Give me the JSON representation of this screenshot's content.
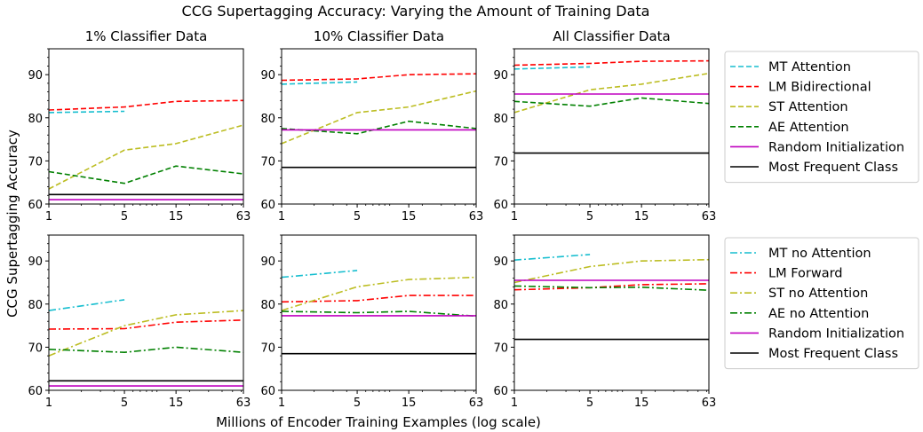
{
  "chart_data": {
    "type": "line",
    "title": "CCG Supertagging Accuracy: Varying the Amount of Training Data",
    "xlabel": "Millions of Encoder Training Examples (log scale)",
    "ylabel": "CCG Supertagging Accuracy",
    "xscale": "log",
    "xlim": [
      1,
      63
    ],
    "ylim": [
      60,
      96
    ],
    "xticks": [
      1,
      5,
      15,
      63
    ],
    "yticks": [
      60,
      70,
      80,
      90
    ],
    "colors": {
      "MT": "#17becf",
      "LM": "#ff0000",
      "ST": "#bcbd22",
      "AE": "#008000",
      "Random": "#bf00bf",
      "Frequent": "#000000"
    },
    "column_titles": [
      "1% Classifier Data",
      "10% Classifier Data",
      "All Classifier Data"
    ],
    "legends": [
      {
        "position": "right-top",
        "entries": [
          {
            "label": "MT Attention",
            "color_key": "MT",
            "style": "dashed"
          },
          {
            "label": "LM Bidirectional",
            "color_key": "LM",
            "style": "dashed"
          },
          {
            "label": "ST Attention",
            "color_key": "ST",
            "style": "dashed"
          },
          {
            "label": "AE Attention",
            "color_key": "AE",
            "style": "dashed"
          },
          {
            "label": "Random Initialization",
            "color_key": "Random",
            "style": "solid"
          },
          {
            "label": "Most Frequent Class",
            "color_key": "Frequent",
            "style": "solid"
          }
        ]
      },
      {
        "position": "right-bottom",
        "entries": [
          {
            "label": "MT no Attention",
            "color_key": "MT",
            "style": "dashdot"
          },
          {
            "label": "LM Forward",
            "color_key": "LM",
            "style": "dashdot"
          },
          {
            "label": "ST no Attention",
            "color_key": "ST",
            "style": "dashdot"
          },
          {
            "label": "AE no Attention",
            "color_key": "AE",
            "style": "dashdot"
          },
          {
            "label": "Random Initialization",
            "color_key": "Random",
            "style": "solid"
          },
          {
            "label": "Most Frequent Class",
            "color_key": "Frequent",
            "style": "solid"
          }
        ]
      }
    ],
    "panels": [
      {
        "row": 0,
        "col": 0,
        "series": [
          {
            "name": "MT Attention",
            "color_key": "MT",
            "style": "dashed",
            "x": [
              1,
              5
            ],
            "y": [
              81.2,
              81.5
            ]
          },
          {
            "name": "LM Bidirectional",
            "color_key": "LM",
            "style": "dashed",
            "x": [
              1,
              5,
              15,
              63
            ],
            "y": [
              81.8,
              82.5,
              83.8,
              84.0
            ]
          },
          {
            "name": "ST Attention",
            "color_key": "ST",
            "style": "dashed",
            "x": [
              1,
              5,
              15,
              63
            ],
            "y": [
              63.5,
              72.5,
              74.0,
              78.3
            ]
          },
          {
            "name": "AE Attention",
            "color_key": "AE",
            "style": "dashed",
            "x": [
              1,
              5,
              15,
              63
            ],
            "y": [
              67.5,
              64.8,
              68.8,
              67.0
            ]
          },
          {
            "name": "Random Initialization",
            "color_key": "Random",
            "style": "solid",
            "x": [
              1,
              63
            ],
            "y": [
              61.0,
              61.0
            ]
          },
          {
            "name": "Most Frequent Class",
            "color_key": "Frequent",
            "style": "solid",
            "x": [
              1,
              63
            ],
            "y": [
              62.2,
              62.2
            ]
          }
        ]
      },
      {
        "row": 0,
        "col": 1,
        "series": [
          {
            "name": "MT Attention",
            "color_key": "MT",
            "style": "dashed",
            "x": [
              1,
              5
            ],
            "y": [
              87.8,
              88.3
            ]
          },
          {
            "name": "LM Bidirectional",
            "color_key": "LM",
            "style": "dashed",
            "x": [
              1,
              5,
              15,
              63
            ],
            "y": [
              88.7,
              89.0,
              90.0,
              90.2
            ]
          },
          {
            "name": "ST Attention",
            "color_key": "ST",
            "style": "dashed",
            "x": [
              1,
              5,
              15,
              63
            ],
            "y": [
              74.0,
              81.2,
              82.5,
              86.2
            ]
          },
          {
            "name": "AE Attention",
            "color_key": "AE",
            "style": "dashed",
            "x": [
              1,
              5,
              15,
              63
            ],
            "y": [
              77.5,
              76.3,
              79.2,
              77.5
            ]
          },
          {
            "name": "Random Initialization",
            "color_key": "Random",
            "style": "solid",
            "x": [
              1,
              63
            ],
            "y": [
              77.2,
              77.2
            ]
          },
          {
            "name": "Most Frequent Class",
            "color_key": "Frequent",
            "style": "solid",
            "x": [
              1,
              63
            ],
            "y": [
              68.5,
              68.5
            ]
          }
        ]
      },
      {
        "row": 0,
        "col": 2,
        "series": [
          {
            "name": "MT Attention",
            "color_key": "MT",
            "style": "dashed",
            "x": [
              1,
              5
            ],
            "y": [
              91.3,
              91.8
            ]
          },
          {
            "name": "LM Bidirectional",
            "color_key": "LM",
            "style": "dashed",
            "x": [
              1,
              5,
              15,
              63
            ],
            "y": [
              92.2,
              92.6,
              93.1,
              93.2
            ]
          },
          {
            "name": "ST Attention",
            "color_key": "ST",
            "style": "dashed",
            "x": [
              1,
              5,
              15,
              63
            ],
            "y": [
              81.2,
              86.5,
              87.8,
              90.3
            ]
          },
          {
            "name": "AE Attention",
            "color_key": "AE",
            "style": "dashed",
            "x": [
              1,
              5,
              15,
              63
            ],
            "y": [
              83.8,
              82.7,
              84.6,
              83.3
            ]
          },
          {
            "name": "Random Initialization",
            "color_key": "Random",
            "style": "solid",
            "x": [
              1,
              63
            ],
            "y": [
              85.5,
              85.5
            ]
          },
          {
            "name": "Most Frequent Class",
            "color_key": "Frequent",
            "style": "solid",
            "x": [
              1,
              63
            ],
            "y": [
              71.8,
              71.8
            ]
          }
        ]
      },
      {
        "row": 1,
        "col": 0,
        "series": [
          {
            "name": "MT no Attention",
            "color_key": "MT",
            "style": "dashdot",
            "x": [
              1,
              5
            ],
            "y": [
              78.5,
              81.0
            ]
          },
          {
            "name": "LM Forward",
            "color_key": "LM",
            "style": "dashdot",
            "x": [
              1,
              5,
              15,
              63
            ],
            "y": [
              74.2,
              74.3,
              75.8,
              76.3
            ]
          },
          {
            "name": "ST no Attention",
            "color_key": "ST",
            "style": "dashdot",
            "x": [
              1,
              5,
              15,
              63
            ],
            "y": [
              68.0,
              75.0,
              77.5,
              78.5
            ]
          },
          {
            "name": "AE no Attention",
            "color_key": "AE",
            "style": "dashdot",
            "x": [
              1,
              5,
              15,
              63
            ],
            "y": [
              69.5,
              68.8,
              70.0,
              68.8
            ]
          },
          {
            "name": "Random Initialization",
            "color_key": "Random",
            "style": "solid",
            "x": [
              1,
              63
            ],
            "y": [
              61.0,
              61.0
            ]
          },
          {
            "name": "Most Frequent Class",
            "color_key": "Frequent",
            "style": "solid",
            "x": [
              1,
              63
            ],
            "y": [
              62.2,
              62.2
            ]
          }
        ]
      },
      {
        "row": 1,
        "col": 1,
        "series": [
          {
            "name": "MT no Attention",
            "color_key": "MT",
            "style": "dashdot",
            "x": [
              1,
              5
            ],
            "y": [
              86.2,
              87.8
            ]
          },
          {
            "name": "LM Forward",
            "color_key": "LM",
            "style": "dashdot",
            "x": [
              1,
              5,
              15,
              63
            ],
            "y": [
              80.5,
              80.8,
              82.0,
              82.0
            ]
          },
          {
            "name": "ST no Attention",
            "color_key": "ST",
            "style": "dashdot",
            "x": [
              1,
              5,
              15,
              63
            ],
            "y": [
              78.5,
              84.0,
              85.7,
              86.2
            ]
          },
          {
            "name": "AE no Attention",
            "color_key": "AE",
            "style": "dashdot",
            "x": [
              1,
              5,
              15,
              63
            ],
            "y": [
              78.3,
              78.0,
              78.3,
              77.2
            ]
          },
          {
            "name": "Random Initialization",
            "color_key": "Random",
            "style": "solid",
            "x": [
              1,
              63
            ],
            "y": [
              77.3,
              77.3
            ]
          },
          {
            "name": "Most Frequent Class",
            "color_key": "Frequent",
            "style": "solid",
            "x": [
              1,
              63
            ],
            "y": [
              68.5,
              68.5
            ]
          }
        ]
      },
      {
        "row": 1,
        "col": 2,
        "series": [
          {
            "name": "MT no Attention",
            "color_key": "MT",
            "style": "dashdot",
            "x": [
              1,
              5
            ],
            "y": [
              90.2,
              91.5
            ]
          },
          {
            "name": "LM Forward",
            "color_key": "LM",
            "style": "dashdot",
            "x": [
              1,
              5,
              15,
              63
            ],
            "y": [
              83.3,
              83.8,
              84.5,
              84.7
            ]
          },
          {
            "name": "ST no Attention",
            "color_key": "ST",
            "style": "dashdot",
            "x": [
              1,
              5,
              15,
              63
            ],
            "y": [
              85.0,
              88.7,
              90.0,
              90.3
            ]
          },
          {
            "name": "AE no Attention",
            "color_key": "AE",
            "style": "dashdot",
            "x": [
              1,
              5,
              15,
              63
            ],
            "y": [
              84.2,
              83.8,
              83.9,
              83.2
            ]
          },
          {
            "name": "Random Initialization",
            "color_key": "Random",
            "style": "solid",
            "x": [
              1,
              63
            ],
            "y": [
              85.5,
              85.5
            ]
          },
          {
            "name": "Most Frequent Class",
            "color_key": "Frequent",
            "style": "solid",
            "x": [
              1,
              63
            ],
            "y": [
              71.8,
              71.8
            ]
          }
        ]
      }
    ]
  }
}
